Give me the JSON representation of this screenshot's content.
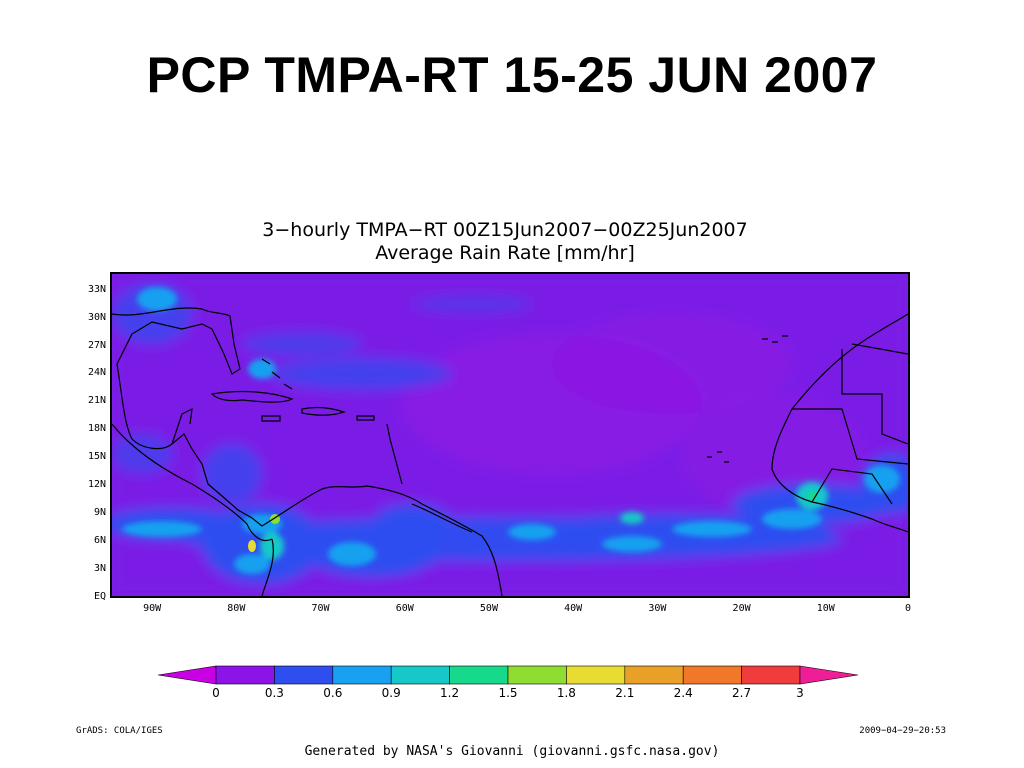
{
  "slide": {
    "title": "PCP TMPA-RT 15-25 JUN 2007"
  },
  "plot": {
    "title_line1": "3−hourly TMPA−RT 00Z15Jun2007−00Z25Jun2007",
    "title_line2": "Average Rain Rate [mm/hr]"
  },
  "map": {
    "lat_labels": [
      "33N",
      "30N",
      "27N",
      "24N",
      "21N",
      "18N",
      "15N",
      "12N",
      "9N",
      "6N",
      "3N",
      "EQ"
    ],
    "lon_labels": [
      "90W",
      "80W",
      "70W",
      "60W",
      "50W",
      "40W",
      "30W",
      "20W",
      "10W",
      "0"
    ],
    "lat_values": [
      33,
      30,
      27,
      24,
      21,
      18,
      15,
      12,
      9,
      6,
      3,
      0
    ],
    "lon_values": [
      -90,
      -80,
      -70,
      -60,
      -50,
      -40,
      -30,
      -20,
      -10,
      0
    ],
    "extent": {
      "lon": [
        -95,
        0
      ],
      "lat": [
        0,
        35
      ]
    },
    "background_color": "#7a1ee6"
  },
  "colorbar": {
    "labels": [
      "0",
      "0.3",
      "0.6",
      "0.9",
      "1.2",
      "1.5",
      "1.8",
      "2.1",
      "2.4",
      "2.7",
      "3"
    ],
    "colors": [
      "#ca00e4",
      "#8c14e8",
      "#2e4ef0",
      "#17a1f0",
      "#17c8c8",
      "#16d98c",
      "#8fdc32",
      "#e8dc32",
      "#e8a028",
      "#f07828",
      "#f03c3c",
      "#f01e96"
    ]
  },
  "credits": {
    "left": "GrADS: COLA/IGES",
    "right": "2009−04−29−20:53",
    "footer": "Generated by NASA's Giovanni (giovanni.gsfc.nasa.gov)"
  }
}
